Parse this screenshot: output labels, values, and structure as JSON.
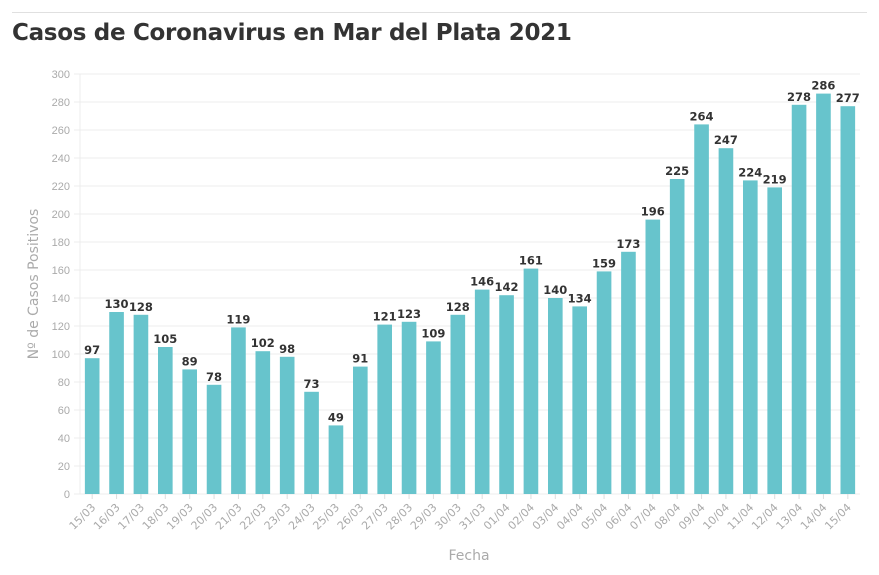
{
  "chart_data": {
    "type": "bar",
    "title": "Casos de Coronavirus en Mar del Plata 2021",
    "xlabel": "Fecha",
    "ylabel": "Nº de Casos Positivos",
    "ylim": [
      0,
      300
    ],
    "yticks": [
      0,
      20,
      40,
      60,
      80,
      100,
      120,
      140,
      160,
      180,
      200,
      220,
      240,
      260,
      280,
      300
    ],
    "grid": true,
    "bar_color": "#67c4cc",
    "categories": [
      "15/03",
      "16/03",
      "17/03",
      "18/03",
      "19/03",
      "20/03",
      "21/03",
      "22/03",
      "23/03",
      "24/03",
      "25/03",
      "26/03",
      "27/03",
      "28/03",
      "29/03",
      "30/03",
      "31/03",
      "01/04",
      "02/04",
      "03/04",
      "04/04",
      "05/04",
      "06/04",
      "07/04",
      "08/04",
      "09/04",
      "10/04",
      "11/04",
      "12/04",
      "13/04",
      "14/04",
      "15/04"
    ],
    "values": [
      97,
      130,
      128,
      105,
      89,
      78,
      119,
      102,
      98,
      73,
      49,
      91,
      121,
      123,
      109,
      128,
      146,
      142,
      161,
      140,
      134,
      159,
      173,
      196,
      225,
      264,
      247,
      224,
      219,
      278,
      286,
      277
    ]
  }
}
